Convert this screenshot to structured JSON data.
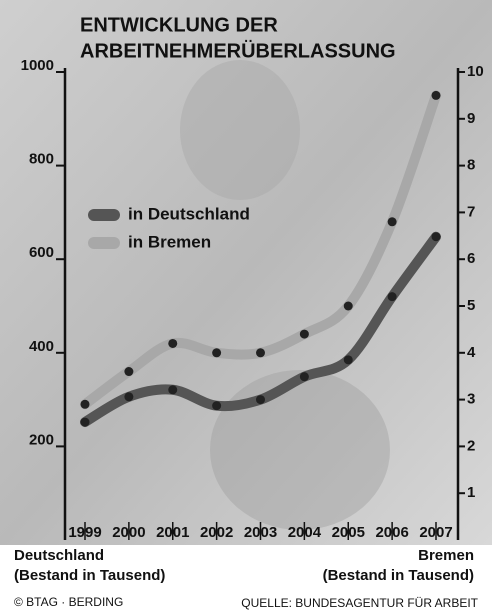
{
  "chart_data": {
    "type": "line",
    "title": [
      "ENTWICKLUNG DER",
      "ARBEITNEHMERÜBERLASSUNG"
    ],
    "ylabel": [
      "Deutschland",
      "(Bestand in Tausend)"
    ],
    "y2label": [
      "Bremen",
      "(Bestand in Tausend)"
    ],
    "credit": "© BTAG · BERDING",
    "source": "QUELLE: BUNDESAGENTUR FÜR ARBEIT",
    "categories": [
      "1999",
      "2000",
      "2001",
      "2002",
      "2003",
      "2004",
      "2005",
      "2006",
      "2007"
    ],
    "series": [
      {
        "name": "in Deutschland",
        "color": "#555555",
        "values": [
          252,
          306,
          321,
          287,
          300,
          349,
          385,
          520,
          648
        ]
      },
      {
        "name": "in Bremen",
        "color": "#a8a8a8",
        "axis": "y2",
        "values": [
          2.9,
          3.6,
          4.2,
          4.0,
          4.0,
          4.4,
          5.0,
          6.8,
          9.5
        ]
      }
    ],
    "ylim": [
      0,
      1000
    ],
    "yticks": [
      200,
      400,
      600,
      800,
      1000
    ],
    "y2lim": [
      0,
      10
    ],
    "y2ticks": [
      1,
      2,
      3,
      4,
      5,
      6,
      7,
      8,
      9,
      10
    ],
    "legend": "upper left"
  }
}
